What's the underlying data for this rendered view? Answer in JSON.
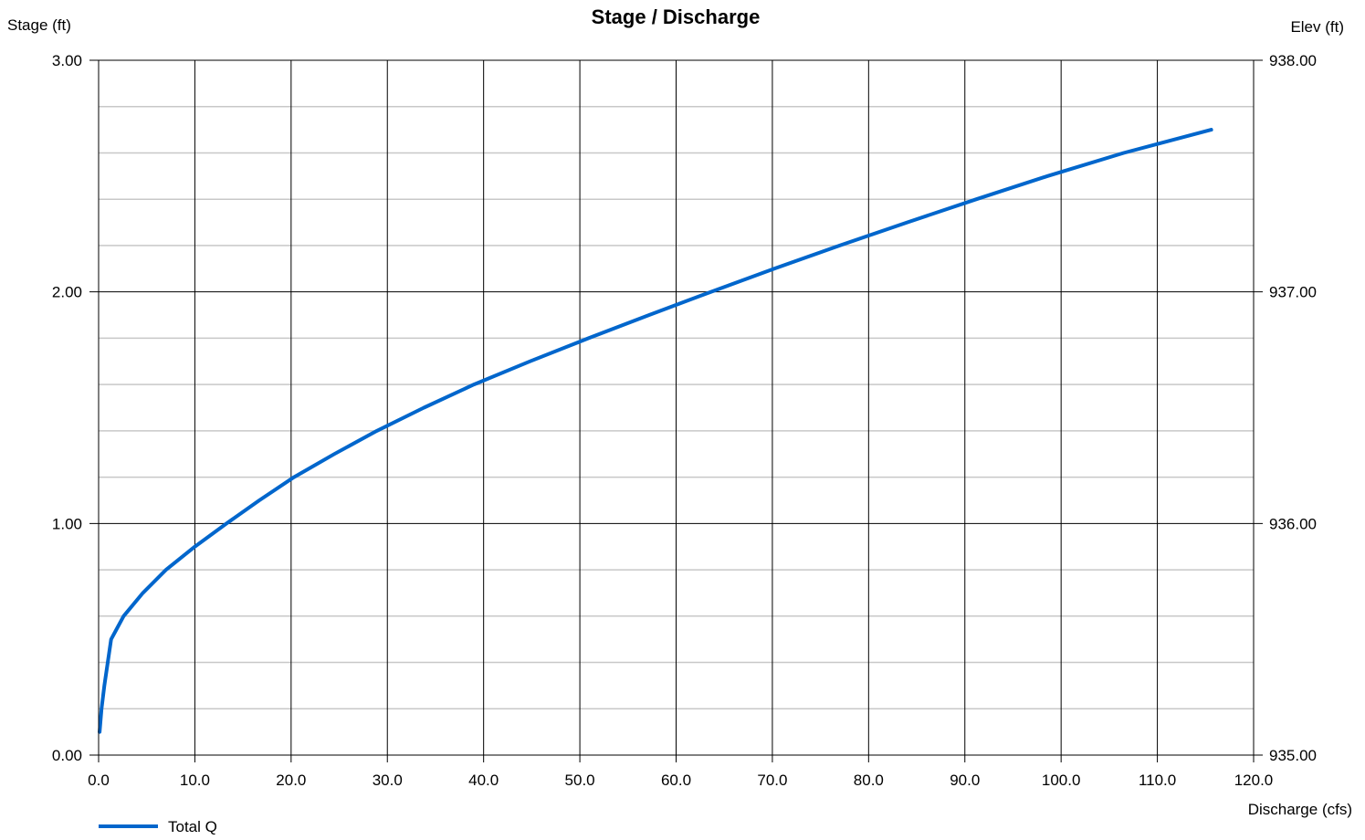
{
  "chart_data": {
    "type": "line",
    "title": "Stage / Discharge",
    "xlabel": "Discharge (cfs)",
    "ylabel": "Stage (ft)",
    "y2label": "Elev (ft)",
    "xlim": [
      0.0,
      120.0
    ],
    "ylim": [
      0.0,
      3.0
    ],
    "y2lim": [
      935.0,
      938.0
    ],
    "x_ticks": [
      "0.0",
      "10.0",
      "20.0",
      "30.0",
      "40.0",
      "50.0",
      "60.0",
      "70.0",
      "80.0",
      "90.0",
      "100.0",
      "110.0",
      "120.0"
    ],
    "y_ticks": [
      "0.00",
      "1.00",
      "2.00",
      "3.00"
    ],
    "y2_ticks": [
      "935.00",
      "936.00",
      "937.00",
      "938.00"
    ],
    "grid": true,
    "legend_position": "bottom-left",
    "series": [
      {
        "name": "Total Q",
        "color": "#0066cc",
        "x": [
          0.1,
          0.3,
          0.6,
          1.3,
          2.6,
          4.6,
          7.0,
          10.0,
          13.3,
          16.7,
          20.3,
          24.5,
          28.9,
          33.8,
          39.0,
          44.8,
          50.9,
          57.2,
          63.6,
          70.2,
          77.0,
          84.0,
          91.2,
          98.6,
          106.5,
          115.6
        ],
        "y": [
          0.1,
          0.2,
          0.3,
          0.5,
          0.6,
          0.7,
          0.8,
          0.9,
          1.0,
          1.1,
          1.2,
          1.3,
          1.4,
          1.5,
          1.6,
          1.7,
          1.8,
          1.9,
          2.0,
          2.1,
          2.2,
          2.3,
          2.4,
          2.5,
          2.6,
          2.7
        ]
      }
    ]
  }
}
